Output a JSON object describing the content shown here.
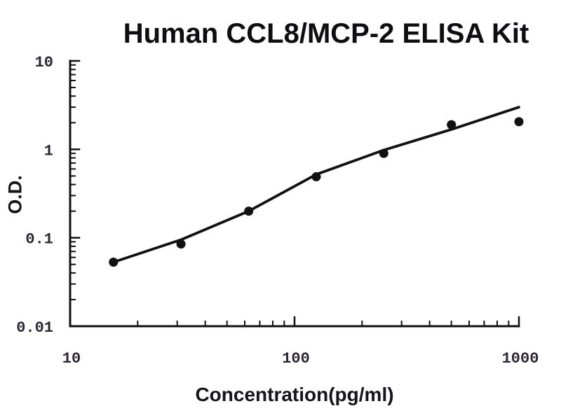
{
  "title": "Human CCL8/MCP-2 ELISA Kit",
  "colors": {
    "background": "#ffffff",
    "axis": "#111111",
    "point": "#111111",
    "trend_line": "#111111",
    "tick_label": "#2e2633",
    "title_text": "#0d0d12"
  },
  "chart_data": {
    "type": "scatter",
    "title": "Human CCL8/MCP-2 ELISA Kit",
    "xlabel": "Concentration(pg/ml)",
    "ylabel": "O.D.",
    "x_scale": "log",
    "y_scale": "log",
    "xlim": [
      10,
      1000
    ],
    "ylim": [
      0.01,
      10
    ],
    "x_ticks": [
      {
        "value": 10,
        "label": "10"
      },
      {
        "value": 100,
        "label": "100"
      },
      {
        "value": 1000,
        "label": "1000"
      }
    ],
    "y_ticks": [
      {
        "value": 10,
        "label": "10"
      },
      {
        "value": 1,
        "label": "1"
      },
      {
        "value": 0.1,
        "label": "0.1"
      },
      {
        "value": 0.01,
        "label": "0.01"
      }
    ],
    "grid": false,
    "legend": false,
    "points": {
      "concentration_pg_ml": [
        15.6,
        31.2,
        62.5,
        125,
        250,
        500,
        1000
      ],
      "od": [
        0.053,
        0.085,
        0.2,
        0.49,
        0.9,
        1.9,
        2.05
      ]
    },
    "trend_line": {
      "concentration_pg_ml": [
        15.6,
        31.2,
        62.5,
        125,
        250,
        500,
        1000
      ],
      "od": [
        0.053,
        0.095,
        0.2,
        0.52,
        0.98,
        1.68,
        3.0
      ]
    }
  }
}
